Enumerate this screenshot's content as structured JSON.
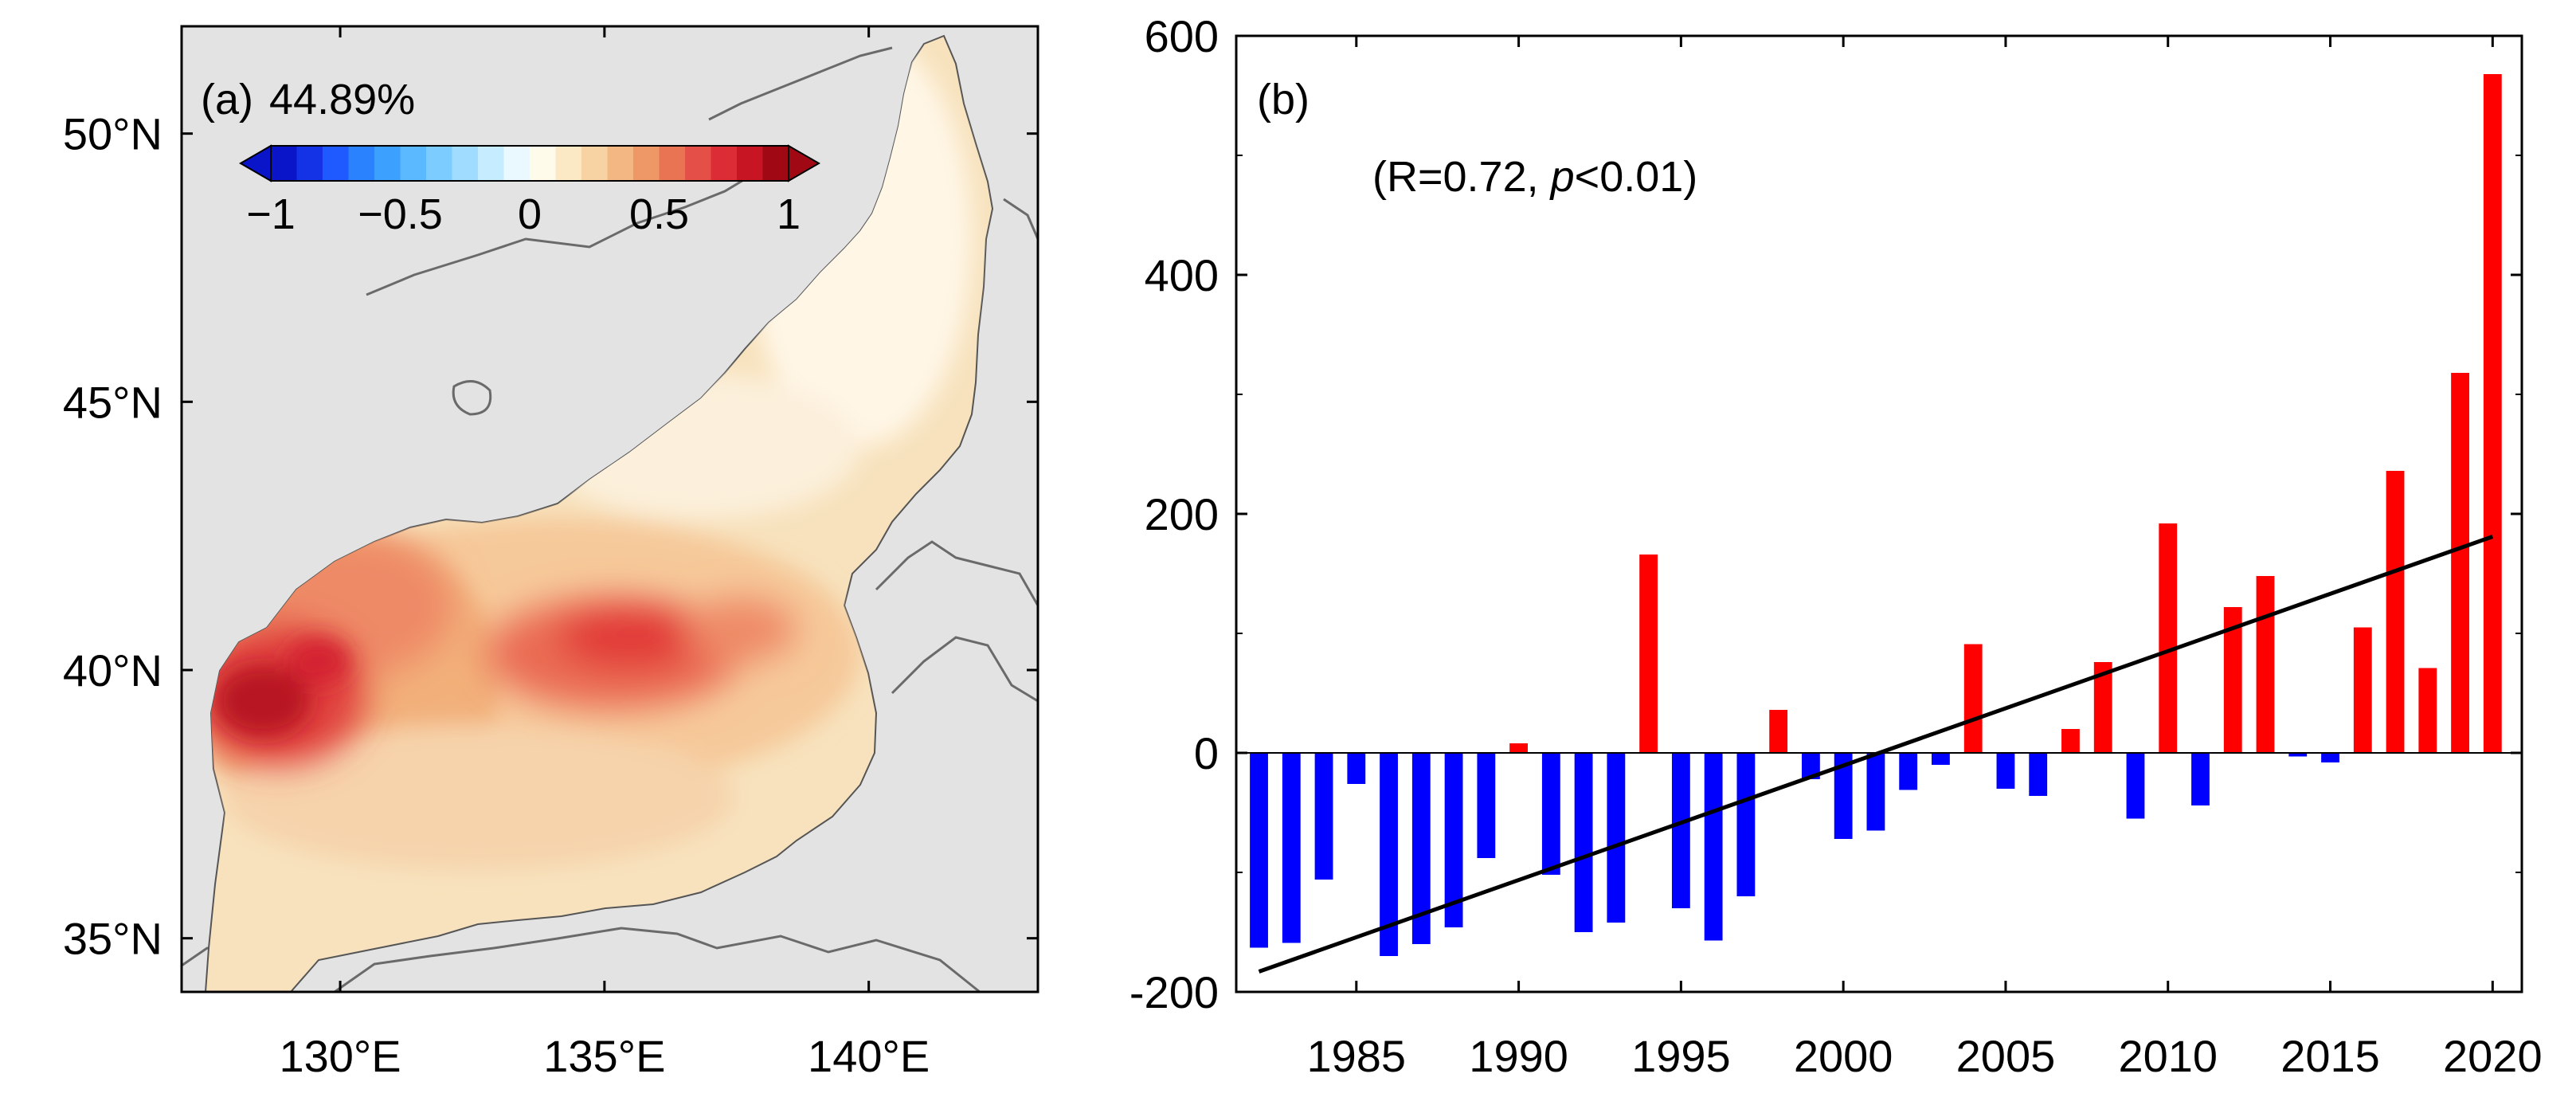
{
  "chart_data": [
    {
      "panel": "a",
      "type": "heatmap",
      "label": "(a)",
      "percent_text": "44.89%",
      "colorbar": {
        "min": -1,
        "max": 1,
        "steps": 20,
        "tick_values": [
          -1,
          -0.5,
          0,
          0.5,
          1
        ],
        "tick_labels": [
          "−1",
          "−0.5",
          "0",
          "0.5",
          "1"
        ],
        "colors": [
          "#0a14c8",
          "#1432e6",
          "#1e5aff",
          "#2a82ff",
          "#3ca0ff",
          "#5ab9ff",
          "#7dccff",
          "#a0dcff",
          "#c6ecff",
          "#eaf8ff",
          "#fffbea",
          "#fbe8c4",
          "#f7d3a4",
          "#f3b784",
          "#ee9868",
          "#e97454",
          "#e45048",
          "#dc2c36",
          "#c81524",
          "#a00814"
        ],
        "extend": "both"
      },
      "x_ticks": [
        130,
        135,
        140
      ],
      "x_tick_labels": [
        "130°E",
        "135°E",
        "140°E"
      ],
      "y_ticks": [
        35,
        40,
        45,
        50
      ],
      "y_tick_labels": [
        "35°N",
        "40°N",
        "45°N",
        "50°N"
      ],
      "xlim": [
        127,
        143.2
      ],
      "ylim": [
        34,
        52
      ]
    },
    {
      "panel": "b",
      "type": "bar",
      "label": "(b)",
      "annotation": {
        "prefix": "(R=0.72, ",
        "italic": "p",
        "suffix": "<0.01)"
      },
      "years": [
        1982,
        1983,
        1984,
        1985,
        1986,
        1987,
        1988,
        1989,
        1990,
        1991,
        1992,
        1993,
        1994,
        1995,
        1996,
        1997,
        1998,
        1999,
        2000,
        2001,
        2002,
        2003,
        2004,
        2005,
        2006,
        2007,
        2008,
        2009,
        2010,
        2011,
        2012,
        2013,
        2014,
        2015,
        2016,
        2017,
        2018,
        2019,
        2020
      ],
      "values": [
        -163,
        -159,
        -106,
        -26,
        -170,
        -160,
        -146,
        -88,
        8,
        -102,
        -150,
        -142,
        166,
        -130,
        -157,
        -120,
        36,
        -22,
        -72,
        -65,
        -31,
        -10,
        91,
        -30,
        -36,
        20,
        76,
        -55,
        192,
        -44,
        122,
        148,
        -3,
        -8,
        105,
        236,
        71,
        318,
        568
      ],
      "positive_color": "#ff0000",
      "negative_color": "#0000ff",
      "trend": {
        "start": [
          1982,
          -183
        ],
        "end": [
          2020,
          181
        ],
        "color": "#000000"
      },
      "ylim": [
        -200,
        600
      ],
      "xlim": [
        1981.3,
        2020.9
      ],
      "y_ticks": [
        -200,
        0,
        200,
        400,
        600
      ],
      "y_tick_labels": [
        "-200",
        "0",
        "200",
        "400",
        "600"
      ],
      "x_ticks": [
        1985,
        1990,
        1995,
        2000,
        2005,
        2010,
        2015,
        2020
      ],
      "x_tick_labels": [
        "1985",
        "1990",
        "1995",
        "2000",
        "2005",
        "2010",
        "2015",
        "2020"
      ]
    }
  ]
}
